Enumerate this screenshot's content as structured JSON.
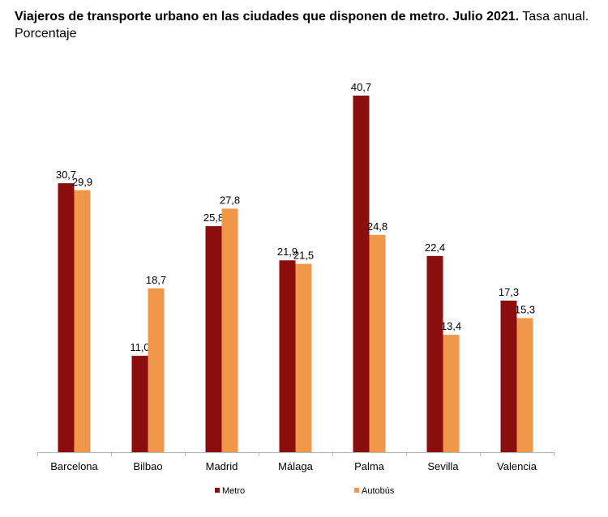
{
  "chart_data": {
    "type": "bar",
    "title_bold": "Viajeros de transporte urbano en las ciudades que disponen de metro. Julio 2021.",
    "title_rest": " Tasa anual. Porcentaje",
    "categories": [
      "Barcelona",
      "Bilbao",
      "Madrid",
      "Málaga",
      "Palma",
      "Sevilla",
      "Valencia"
    ],
    "series": [
      {
        "name": "Metro",
        "color": "#8b0e0e",
        "values": [
          30.7,
          11.0,
          25.8,
          21.9,
          40.7,
          22.4,
          17.3
        ],
        "labels": [
          "30,7",
          "11,0",
          "25,8",
          "21,9",
          "40,7",
          "22,4",
          "17,3"
        ]
      },
      {
        "name": "Autobús",
        "color": "#f0974a",
        "values": [
          29.9,
          18.7,
          27.8,
          21.5,
          24.8,
          13.4,
          15.3
        ],
        "labels": [
          "29,9",
          "18,7",
          "27,8",
          "21,5",
          "24,8",
          "13,4",
          "15,3"
        ]
      }
    ],
    "ylim": [
      0,
      40.7
    ],
    "xlabel": "",
    "ylabel": "",
    "legend_position": "bottom",
    "grid": false
  }
}
